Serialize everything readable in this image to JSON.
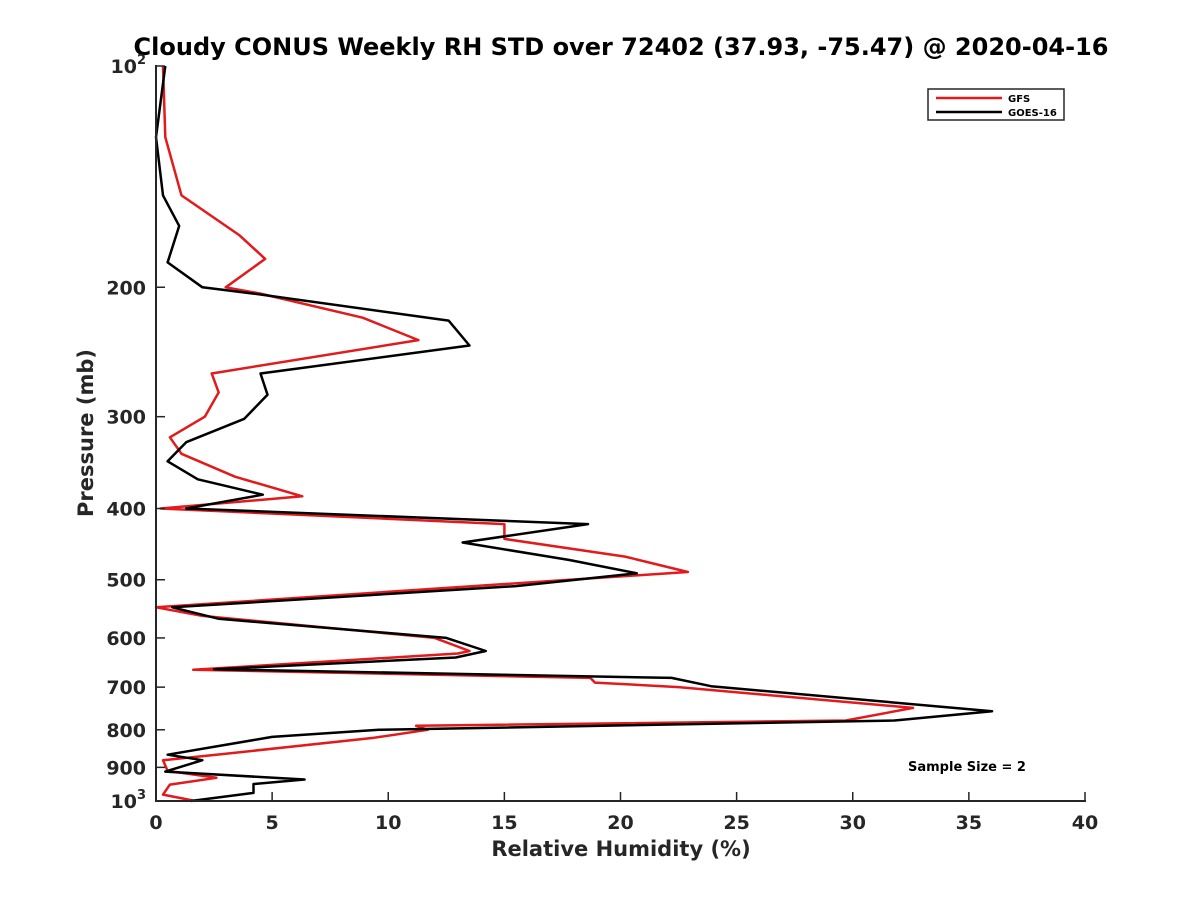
{
  "chart_data": {
    "type": "line",
    "title": "Cloudy CONUS Weekly RH STD over 72402 (37.93, -75.47) @ 2020-04-16",
    "xlabel": "Relative Humidity (%)",
    "ylabel": "Pressure (mb)",
    "xlim": [
      0,
      40
    ],
    "ylim": [
      100,
      1000
    ],
    "yscale": "log",
    "y_reversed": true,
    "grid": false,
    "legend_position": "top-right",
    "x_ticks": [
      0,
      5,
      10,
      15,
      20,
      25,
      30,
      35,
      40
    ],
    "y_ticks": [
      {
        "value": 100,
        "label": "10",
        "sup": "2"
      },
      {
        "value": 200,
        "label": "200",
        "sup": ""
      },
      {
        "value": 300,
        "label": "300",
        "sup": ""
      },
      {
        "value": 400,
        "label": "400",
        "sup": ""
      },
      {
        "value": 500,
        "label": "500",
        "sup": ""
      },
      {
        "value": 600,
        "label": "600",
        "sup": ""
      },
      {
        "value": 700,
        "label": "700",
        "sup": ""
      },
      {
        "value": 800,
        "label": "800",
        "sup": ""
      },
      {
        "value": 900,
        "label": "900",
        "sup": ""
      },
      {
        "value": 1000,
        "label": "10",
        "sup": "3"
      }
    ],
    "series": [
      {
        "name": "GFS",
        "color": "#e31a1c",
        "points": [
          {
            "x": 0.3,
            "y": 100
          },
          {
            "x": 0.4,
            "y": 125
          },
          {
            "x": 1.1,
            "y": 150
          },
          {
            "x": 3.6,
            "y": 170
          },
          {
            "x": 4.7,
            "y": 183
          },
          {
            "x": 3.0,
            "y": 200
          },
          {
            "x": 4.5,
            "y": 204
          },
          {
            "x": 8.9,
            "y": 220
          },
          {
            "x": 11.3,
            "y": 236
          },
          {
            "x": 2.4,
            "y": 262
          },
          {
            "x": 2.7,
            "y": 278
          },
          {
            "x": 2.1,
            "y": 300
          },
          {
            "x": 0.6,
            "y": 320
          },
          {
            "x": 1.1,
            "y": 337
          },
          {
            "x": 3.4,
            "y": 362
          },
          {
            "x": 6.3,
            "y": 385
          },
          {
            "x": 0.2,
            "y": 400
          },
          {
            "x": 15.0,
            "y": 420
          },
          {
            "x": 15.0,
            "y": 440
          },
          {
            "x": 20.2,
            "y": 465
          },
          {
            "x": 22.9,
            "y": 488
          },
          {
            "x": 17.0,
            "y": 502
          },
          {
            "x": 0.0,
            "y": 545
          },
          {
            "x": 2.0,
            "y": 560
          },
          {
            "x": 12.0,
            "y": 600
          },
          {
            "x": 13.5,
            "y": 625
          },
          {
            "x": 13.0,
            "y": 630
          },
          {
            "x": 1.6,
            "y": 663
          },
          {
            "x": 18.7,
            "y": 680
          },
          {
            "x": 18.9,
            "y": 690
          },
          {
            "x": 22.5,
            "y": 700
          },
          {
            "x": 32.6,
            "y": 747
          },
          {
            "x": 29.7,
            "y": 777
          },
          {
            "x": 11.2,
            "y": 790
          },
          {
            "x": 11.7,
            "y": 800
          },
          {
            "x": 9.4,
            "y": 820
          },
          {
            "x": 2.9,
            "y": 863
          },
          {
            "x": 0.3,
            "y": 880
          },
          {
            "x": 0.5,
            "y": 910
          },
          {
            "x": 2.6,
            "y": 930
          },
          {
            "x": 0.6,
            "y": 950
          },
          {
            "x": 0.3,
            "y": 980
          },
          {
            "x": 1.7,
            "y": 1000
          }
        ]
      },
      {
        "name": "GOES-16",
        "color": "#000000",
        "points": [
          {
            "x": 0.4,
            "y": 100
          },
          {
            "x": 0.0,
            "y": 125
          },
          {
            "x": 0.3,
            "y": 150
          },
          {
            "x": 1.0,
            "y": 165
          },
          {
            "x": 0.5,
            "y": 185
          },
          {
            "x": 2.0,
            "y": 200
          },
          {
            "x": 4.2,
            "y": 204
          },
          {
            "x": 12.6,
            "y": 222
          },
          {
            "x": 13.5,
            "y": 240
          },
          {
            "x": 4.5,
            "y": 262
          },
          {
            "x": 4.8,
            "y": 280
          },
          {
            "x": 3.8,
            "y": 302
          },
          {
            "x": 1.3,
            "y": 325
          },
          {
            "x": 0.5,
            "y": 345
          },
          {
            "x": 1.8,
            "y": 365
          },
          {
            "x": 4.6,
            "y": 383
          },
          {
            "x": 1.3,
            "y": 400
          },
          {
            "x": 18.6,
            "y": 420
          },
          {
            "x": 13.2,
            "y": 445
          },
          {
            "x": 17.8,
            "y": 470
          },
          {
            "x": 20.7,
            "y": 490
          },
          {
            "x": 15.5,
            "y": 510
          },
          {
            "x": 0.7,
            "y": 545
          },
          {
            "x": 2.7,
            "y": 565
          },
          {
            "x": 12.5,
            "y": 600
          },
          {
            "x": 14.2,
            "y": 625
          },
          {
            "x": 12.9,
            "y": 638
          },
          {
            "x": 2.5,
            "y": 662
          },
          {
            "x": 22.2,
            "y": 680
          },
          {
            "x": 23.9,
            "y": 698
          },
          {
            "x": 36.0,
            "y": 755
          },
          {
            "x": 31.8,
            "y": 777
          },
          {
            "x": 9.6,
            "y": 800
          },
          {
            "x": 5.0,
            "y": 818
          },
          {
            "x": 0.5,
            "y": 865
          },
          {
            "x": 2.0,
            "y": 880
          },
          {
            "x": 0.4,
            "y": 912
          },
          {
            "x": 6.4,
            "y": 935
          },
          {
            "x": 4.2,
            "y": 948
          },
          {
            "x": 4.2,
            "y": 975
          },
          {
            "x": 1.5,
            "y": 1000
          }
        ]
      }
    ],
    "annotations": [
      {
        "text": "Sample Size = 2"
      }
    ]
  }
}
